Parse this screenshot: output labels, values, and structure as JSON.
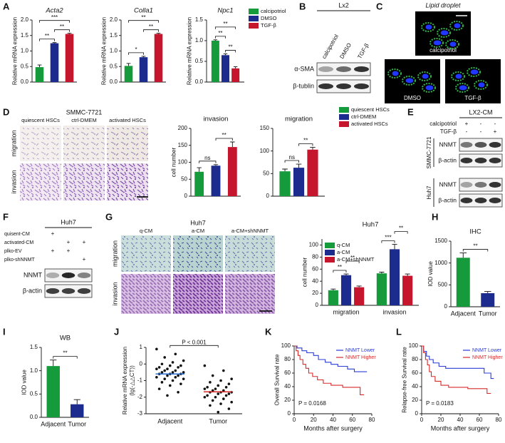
{
  "panel_labels": [
    "A",
    "B",
    "C",
    "D",
    "E",
    "F",
    "G",
    "H",
    "I",
    "J",
    "K",
    "L"
  ],
  "lx2_blot": {
    "title": "Lx2",
    "lanes": [
      "calcipotriol",
      "DMSO",
      "TGF-β"
    ],
    "rows": [
      "α-SMA",
      "β-tublin"
    ]
  },
  "lipid_droplet": {
    "title": "Lipid droplet",
    "title_italic": true,
    "images": [
      "calcipotriol",
      "DMSO",
      "TGF-β"
    ]
  },
  "transwell_d": {
    "title": "SMMC-7721",
    "columns": [
      "quiescent HSCs",
      "ctrl-DMEM",
      "activated HSCs"
    ],
    "rows": [
      "migration",
      "invasion"
    ]
  },
  "blot_e": {
    "title": "LX2-CM",
    "conditions": [
      {
        "name": "calcipotriol",
        "marks": [
          "+",
          "-",
          "-"
        ]
      },
      {
        "name": "TGF-β",
        "marks": [
          "-",
          "-",
          "+"
        ]
      }
    ],
    "cell_lines": [
      {
        "name": "SMMC-7721",
        "rows": [
          "NNMT",
          "β-actin"
        ]
      },
      {
        "name": "Huh7",
        "rows": [
          "NNMT",
          "β-actin"
        ]
      }
    ]
  },
  "blot_f": {
    "title": "Huh7",
    "conditions": [
      {
        "name": "quisent-CM",
        "marks": [
          "+",
          null,
          null
        ]
      },
      {
        "name": "activated-CM",
        "marks": [
          null,
          "+",
          "+"
        ]
      },
      {
        "name": "plko-EV",
        "marks": [
          "+",
          "+",
          null
        ]
      },
      {
        "name": "plko-shNNMT",
        "marks": [
          null,
          null,
          "+"
        ]
      }
    ],
    "rows": [
      "NNMT",
      "β-actin"
    ]
  },
  "transwell_g": {
    "title": "Huh7",
    "columns": [
      "q-CM",
      "a-CM",
      "a-CM+shNNMT"
    ],
    "rows": [
      "migration",
      "invasion"
    ]
  },
  "chart_data": [
    {
      "type": "bar",
      "title": "Acta2",
      "title_italic": true,
      "ylabel": "Relative mRNA expression",
      "categories": [
        null,
        null,
        null
      ],
      "values": [
        0.48,
        1.25,
        1.55
      ],
      "errors": [
        0.07,
        0.02,
        0.02
      ],
      "colors": [
        "#159a3c",
        "#1c2b8e",
        "#c5162e"
      ],
      "ylim": [
        0,
        2
      ],
      "yticks": [
        {
          "value": 0,
          "label": "0.0"
        },
        0.5,
        {
          "value": 1,
          "label": "1.0"
        },
        1.5,
        {
          "value": 2,
          "label": "2.0"
        }
      ],
      "annotations": [
        {
          "text": "**",
          "from": 0,
          "to": 1
        },
        {
          "text": "**",
          "from": 1,
          "to": 2
        },
        {
          "text": "***",
          "from": 0,
          "to": 2
        }
      ]
    },
    {
      "type": "bar",
      "title": "Colla1",
      "title_italic": true,
      "ylabel": "Relative mRNA expression",
      "categories": [
        null,
        null,
        null
      ],
      "values": [
        0.52,
        0.8,
        1.55
      ],
      "errors": [
        0.08,
        0.03,
        0.02
      ],
      "colors": [
        "#159a3c",
        "#1c2b8e",
        "#c5162e"
      ],
      "ylim": [
        0,
        2
      ],
      "yticks": [
        {
          "value": 0,
          "label": "0.0"
        },
        0.5,
        {
          "value": 1,
          "label": "1.0"
        },
        1.5,
        {
          "value": 2,
          "label": "2.0"
        }
      ],
      "annotations": [
        {
          "text": "*",
          "from": 0,
          "to": 1
        },
        {
          "text": "**",
          "from": 1,
          "to": 2
        },
        {
          "text": "**",
          "from": 0,
          "to": 2
        }
      ]
    },
    {
      "type": "bar",
      "title": "Npc1",
      "title_italic": true,
      "ylabel": "Relative mRNA expression",
      "categories": [
        null
      ],
      "series": [
        {
          "name": "calcipotriol",
          "color": "#159a3c",
          "values": [
            1.0
          ],
          "errors": [
            0.02
          ]
        },
        {
          "name": "DMSO",
          "color": "#1c2b8e",
          "values": [
            0.65
          ],
          "errors": [
            0.03
          ]
        },
        {
          "name": "TGF-β",
          "color": "#c5162e",
          "values": [
            0.33
          ],
          "errors": [
            0.04
          ]
        }
      ],
      "legend": "right",
      "ylim": [
        0,
        1.5
      ],
      "yticks": [
        {
          "value": 0,
          "label": "0.0"
        },
        0.5,
        {
          "value": 1,
          "label": "1.0"
        },
        1.5
      ],
      "annotations": [
        {
          "text": "**",
          "from": 1,
          "to": 2
        },
        {
          "text": "**",
          "from": 0,
          "to": 1
        },
        {
          "text": "**",
          "from": 0,
          "to": 2
        }
      ]
    },
    {
      "type": "bar",
      "title": "invasion",
      "ylabel": "cell number",
      "categories": [
        null,
        null,
        null
      ],
      "values": [
        72,
        90,
        145
      ],
      "errors": [
        12,
        3,
        15
      ],
      "colors": [
        "#159a3c",
        "#1c2b8e",
        "#c5162e"
      ],
      "ylim": [
        0,
        200
      ],
      "yticks": [
        0,
        50,
        100,
        150,
        200
      ],
      "annotations": [
        {
          "text": "ns",
          "from": 0,
          "to": 1
        },
        {
          "text": "**",
          "from": 1,
          "to": 2
        }
      ]
    },
    {
      "type": "bar",
      "title": "migration",
      "categories": [
        null
      ],
      "series": [
        {
          "name": "quiescent HSCs",
          "color": "#159a3c",
          "values": [
            55
          ],
          "errors": [
            5
          ]
        },
        {
          "name": "ctrl-DMEM",
          "color": "#1c2b8e",
          "values": [
            63
          ],
          "errors": [
            8
          ]
        },
        {
          "name": "activated HSCs",
          "color": "#c5162e",
          "values": [
            103
          ],
          "errors": [
            5
          ]
        }
      ],
      "legend": "upper right",
      "ylim": [
        0,
        150
      ],
      "yticks": [
        0,
        50,
        100,
        150
      ],
      "annotations": [
        {
          "text": "ns",
          "from": 0,
          "to": 1
        },
        {
          "text": "**",
          "from": 1,
          "to": 2
        }
      ]
    },
    {
      "type": "bar",
      "title": "Huh7",
      "ylabel": "cell number",
      "categories": [
        "migration",
        "invasion"
      ],
      "series": [
        {
          "name": "q-CM",
          "color": "#159a3c",
          "values": [
            25,
            53
          ],
          "errors": [
            2,
            2
          ]
        },
        {
          "name": "a-CM",
          "color": "#1c2b8e",
          "values": [
            50,
            93
          ],
          "errors": [
            2,
            8
          ]
        },
        {
          "name": "a-CM+shNNMT",
          "color": "#c5162e",
          "values": [
            30,
            49
          ],
          "errors": [
            2,
            3
          ]
        }
      ],
      "legend": "upper left",
      "ylim": [
        0,
        110
      ],
      "yticks": [
        0,
        20,
        40,
        60,
        80,
        100
      ],
      "annotations": [
        {
          "text": "**",
          "group": 0,
          "from": 0,
          "to": 1
        },
        {
          "text": "**",
          "group": 0,
          "from": 1,
          "to": 2
        },
        {
          "text": "***",
          "group": 1,
          "from": 0,
          "to": 1
        },
        {
          "text": "**",
          "group": 1,
          "from": 1,
          "to": 2
        }
      ]
    },
    {
      "type": "bar",
      "title": "IHC",
      "ylabel": "IOD value",
      "categories": [
        "Adjacent",
        "Tumor"
      ],
      "values": [
        1120,
        310
      ],
      "errors": [
        110,
        40
      ],
      "colors": [
        "#159a3c",
        "#1c2b8e"
      ],
      "ylim": [
        0,
        1500
      ],
      "yticks": [
        0,
        500,
        1000,
        1500
      ],
      "annotations": [
        {
          "text": "**",
          "from": 0,
          "to": 1
        }
      ]
    },
    {
      "type": "bar",
      "title": "WB",
      "ylabel": "IOD value",
      "categories": [
        "Adjacent",
        "Tumor"
      ],
      "values": [
        1.1,
        0.28
      ],
      "errors": [
        0.13,
        0.1
      ],
      "colors": [
        "#159a3c",
        "#1c2b8e"
      ],
      "ylim": [
        0,
        1.5
      ],
      "yticks": [
        {
          "value": 0,
          "label": "0.0"
        },
        0.5,
        {
          "value": 1,
          "label": "1.0"
        },
        1.5
      ],
      "annotations": [
        {
          "text": "**",
          "from": 0,
          "to": 1
        }
      ]
    },
    {
      "type": "dot",
      "ylabel": [
        "Relative mRNA expression",
        "(lg(-△△CT))"
      ],
      "categories": [
        "Adjacent",
        "Tumor"
      ],
      "points": [
        [
          0.9,
          0.6,
          0.4,
          0.2,
          0.1,
          0.0,
          -0.1,
          -0.1,
          -0.2,
          -0.2,
          -0.3,
          -0.3,
          -0.4,
          -0.4,
          -0.5,
          -0.5,
          -0.5,
          -0.6,
          -0.6,
          -0.6,
          -0.7,
          -0.7,
          -0.8,
          -0.8,
          -0.9,
          -0.9,
          -1.0,
          -1.1,
          -1.2,
          -1.3,
          -1.5,
          -1.7,
          -1.9
        ],
        [
          -0.1,
          -0.4,
          -0.7,
          -0.9,
          -1.0,
          -1.1,
          -1.2,
          -1.3,
          -1.4,
          -1.4,
          -1.5,
          -1.5,
          -1.6,
          -1.6,
          -1.7,
          -1.7,
          -1.7,
          -1.8,
          -1.8,
          -1.9,
          -1.9,
          -2.0,
          -2.0,
          -2.1,
          -2.2,
          -2.3,
          -2.4,
          -2.5,
          -2.7,
          -2.9
        ]
      ],
      "color": "#111111",
      "means": [
        -0.6,
        -1.68
      ],
      "mean_colors": [
        "#2a6fd6",
        "#d62a2a"
      ],
      "ylim": [
        -3,
        1
      ],
      "yticks": [
        1,
        0,
        -1,
        -2,
        -3
      ],
      "annotations": [
        {
          "text": "P < 0.001",
          "from": 0,
          "to": 1
        }
      ]
    },
    {
      "type": "line",
      "ylabel": "Overall Survival rate",
      "xlabel": "Months after surgery",
      "xlim": [
        0,
        80
      ],
      "xticks": [
        0,
        20,
        40,
        60,
        80
      ],
      "ylim": [
        0,
        100
      ],
      "yticks": [
        0,
        20,
        40,
        60,
        80,
        100
      ],
      "legend": "upper right",
      "series": [
        {
          "name": "NNMT Lower",
          "color": "#2a3cd6",
          "x": [
            0,
            3,
            3,
            8,
            8,
            13,
            13,
            20,
            20,
            25,
            25,
            32,
            32,
            38,
            38,
            45,
            45,
            55,
            55,
            62,
            62,
            75
          ],
          "values": [
            100,
            100,
            97,
            97,
            93,
            93,
            90,
            90,
            86,
            86,
            80,
            80,
            76,
            76,
            73,
            73,
            70,
            70,
            66,
            66,
            62,
            62
          ]
        },
        {
          "name": "NNMT Higher",
          "color": "#d62a2a",
          "x": [
            0,
            2,
            2,
            4,
            4,
            6,
            6,
            9,
            9,
            12,
            12,
            15,
            15,
            19,
            19,
            24,
            24,
            30,
            30,
            38,
            38,
            50,
            50,
            68,
            68,
            72
          ],
          "values": [
            100,
            100,
            93,
            93,
            86,
            86,
            80,
            80,
            73,
            73,
            67,
            67,
            60,
            60,
            55,
            55,
            50,
            50,
            45,
            45,
            42,
            42,
            39,
            39,
            28,
            28
          ]
        }
      ],
      "annotations": [
        {
          "text": "P = 0.0168"
        }
      ]
    },
    {
      "type": "line",
      "ylabel": "Relapse-free Survival rate",
      "xlabel": "Months after surgery",
      "xlim": [
        0,
        80
      ],
      "xticks": [
        0,
        20,
        40,
        60,
        80
      ],
      "ylim": [
        0,
        100
      ],
      "yticks": [
        0,
        20,
        40,
        60,
        80,
        100
      ],
      "legend": "upper right",
      "series": [
        {
          "name": "NNMT Lower",
          "color": "#2a3cd6",
          "x": [
            0,
            2,
            2,
            5,
            5,
            8,
            8,
            12,
            12,
            18,
            18,
            25,
            25,
            65,
            65,
            72,
            72,
            75
          ],
          "values": [
            100,
            100,
            92,
            92,
            85,
            85,
            80,
            80,
            75,
            75,
            70,
            70,
            67,
            67,
            60,
            60,
            52,
            52
          ]
        },
        {
          "name": "NNMT Higher",
          "color": "#d62a2a",
          "x": [
            0,
            2,
            2,
            4,
            4,
            6,
            6,
            8,
            8,
            10,
            10,
            14,
            14,
            20,
            20,
            28,
            28,
            48,
            48,
            68,
            68,
            72
          ],
          "values": [
            100,
            100,
            90,
            90,
            80,
            80,
            72,
            72,
            62,
            62,
            55,
            55,
            48,
            48,
            42,
            42,
            39,
            39,
            37,
            37,
            30,
            30
          ]
        }
      ],
      "annotations": [
        {
          "text": "P = 0.0183"
        }
      ]
    }
  ]
}
